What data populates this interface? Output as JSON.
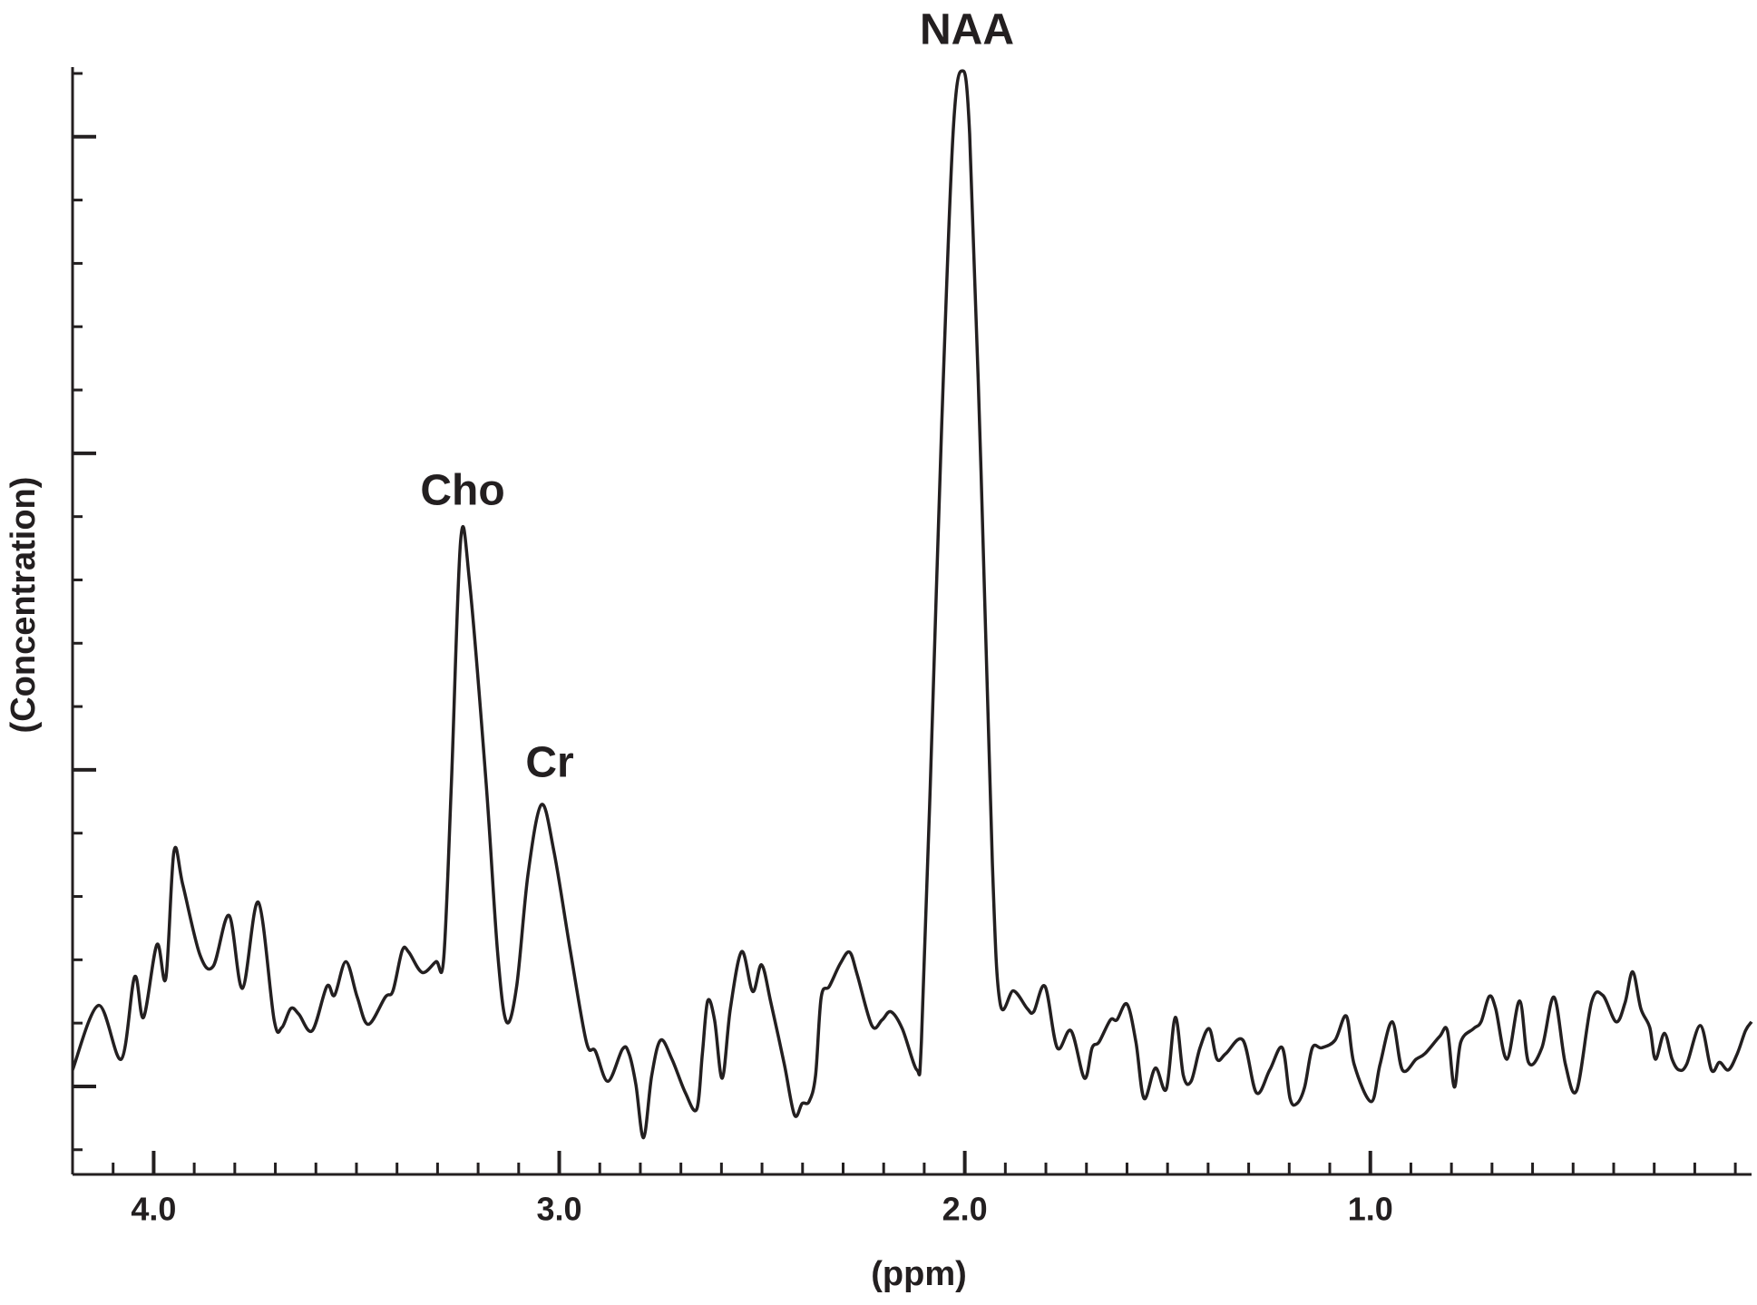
{
  "chart_data": {
    "type": "line",
    "x_label": "(ppm)",
    "y_label": "(Concentration)",
    "annotations": [
      "NAA",
      "Cho",
      "Cr"
    ],
    "color": "#231f20",
    "xlim": [
      4.2,
      0.06
    ],
    "ylim": [
      -0.39,
      17.1
    ],
    "xticks": [
      {
        "value": 4,
        "label": "4.0"
      },
      {
        "value": 3,
        "label": "3.0"
      },
      {
        "value": 2,
        "label": "2.0"
      },
      {
        "value": 1,
        "label": "1.0"
      }
    ],
    "xticks_minor": [
      4.1,
      3.9,
      3.8,
      3.7,
      3.6,
      3.5,
      3.4,
      3.3,
      3.2,
      3.1,
      2.9,
      2.8,
      2.7,
      2.6,
      2.5,
      2.4,
      2.3,
      2.2,
      2.1,
      1.9,
      1.8,
      1.7,
      1.6,
      1.5,
      1.4,
      1.3,
      1.2,
      1.1,
      0.9,
      0.8,
      0.7,
      0.6,
      0.5,
      0.4,
      0.3,
      0.2,
      0.1
    ],
    "yticks": [
      0,
      2,
      3,
      4,
      5,
      7,
      8,
      9,
      10,
      12,
      13,
      14,
      15,
      17
    ],
    "yticks_major": [
      1,
      6,
      11,
      16
    ],
    "x": [
      4.2,
      4.136,
      4.08,
      4.047,
      4.025,
      3.992,
      3.97,
      3.95,
      3.928,
      3.886,
      3.853,
      3.814,
      3.781,
      3.742,
      3.703,
      3.684,
      3.662,
      3.642,
      3.609,
      3.573,
      3.554,
      3.526,
      3.498,
      3.471,
      3.429,
      3.41,
      3.387,
      3.371,
      3.338,
      3.304,
      3.285,
      3.266,
      3.243,
      3.221,
      3.18,
      3.152,
      3.13,
      3.105,
      3.077,
      3.044,
      3.013,
      2.972,
      2.933,
      2.911,
      2.88,
      2.844,
      2.828,
      2.811,
      2.792,
      2.772,
      2.75,
      2.722,
      2.689,
      2.661,
      2.647,
      2.634,
      2.617,
      2.598,
      2.578,
      2.55,
      2.523,
      2.501,
      2.478,
      2.445,
      2.42,
      2.401,
      2.384,
      2.368,
      2.354,
      2.334,
      2.307,
      2.284,
      2.265,
      2.229,
      2.204,
      2.182,
      2.154,
      2.118,
      2.107,
      2.085,
      2.057,
      2.029,
      2.007,
      1.988,
      1.96,
      1.932,
      1.913,
      1.88,
      1.846,
      1.83,
      1.802,
      1.772,
      1.738,
      1.705,
      1.686,
      1.669,
      1.641,
      1.625,
      1.6,
      1.578,
      1.558,
      1.53,
      1.503,
      1.481,
      1.461,
      1.442,
      1.42,
      1.397,
      1.378,
      1.356,
      1.314,
      1.281,
      1.248,
      1.217,
      1.198,
      1.181,
      1.162,
      1.143,
      1.12,
      1.087,
      1.059,
      1.04,
      0.998,
      0.976,
      0.946,
      0.921,
      0.887,
      0.865,
      0.829,
      0.81,
      0.793,
      0.777,
      0.746,
      0.727,
      0.707,
      0.691,
      0.663,
      0.632,
      0.61,
      0.577,
      0.547,
      0.519,
      0.491,
      0.455,
      0.427,
      0.394,
      0.372,
      0.353,
      0.333,
      0.311,
      0.297,
      0.275,
      0.256,
      0.239,
      0.22,
      0.186,
      0.159,
      0.139,
      0.117,
      0.095,
      0.075,
      0.06
    ],
    "values": [
      1.26,
      2.28,
      1.43,
      2.73,
      2.09,
      3.24,
      2.71,
      4.71,
      4.18,
      3.08,
      2.9,
      3.7,
      2.55,
      3.91,
      2.05,
      1.93,
      2.23,
      2.14,
      1.88,
      2.58,
      2.44,
      2.97,
      2.41,
      1.98,
      2.41,
      2.51,
      3.15,
      3.12,
      2.8,
      2.97,
      3.01,
      5.77,
      9.63,
      8.96,
      5.77,
      3.12,
      2.02,
      2.58,
      4.35,
      5.45,
      4.71,
      3.12,
      1.7,
      1.56,
      1.08,
      1.59,
      1.52,
      1.03,
      0.19,
      1.17,
      1.73,
      1.43,
      0.9,
      0.64,
      1.52,
      2.35,
      2.05,
      1.13,
      2.23,
      3.13,
      2.5,
      2.92,
      2.32,
      1.35,
      0.55,
      0.73,
      0.76,
      1.17,
      2.41,
      2.58,
      2.94,
      3.12,
      2.76,
      1.96,
      2.05,
      2.18,
      1.91,
      1.26,
      1.7,
      5.77,
      11.43,
      16.04,
      17.04,
      16.04,
      10.73,
      4.53,
      2.32,
      2.51,
      2.23,
      2.18,
      2.58,
      1.61,
      1.88,
      1.13,
      1.61,
      1.7,
      2.05,
      2.05,
      2.3,
      1.7,
      0.81,
      1.29,
      0.96,
      2.09,
      1.17,
      1.08,
      1.61,
      1.91,
      1.43,
      1.52,
      1.73,
      0.9,
      1.26,
      1.61,
      0.81,
      0.73,
      0.99,
      1.61,
      1.61,
      1.73,
      2.11,
      1.35,
      0.76,
      1.35,
      2.02,
      1.26,
      1.43,
      1.52,
      1.79,
      1.88,
      0.99,
      1.7,
      1.91,
      2.02,
      2.42,
      2.23,
      1.43,
      2.35,
      1.38,
      1.61,
      2.41,
      1.35,
      0.94,
      2.32,
      2.44,
      2.02,
      2.32,
      2.81,
      2.23,
      1.93,
      1.43,
      1.84,
      1.43,
      1.26,
      1.35,
      1.96,
      1.26,
      1.38,
      1.26,
      1.52,
      1.88,
      2.02
    ]
  }
}
